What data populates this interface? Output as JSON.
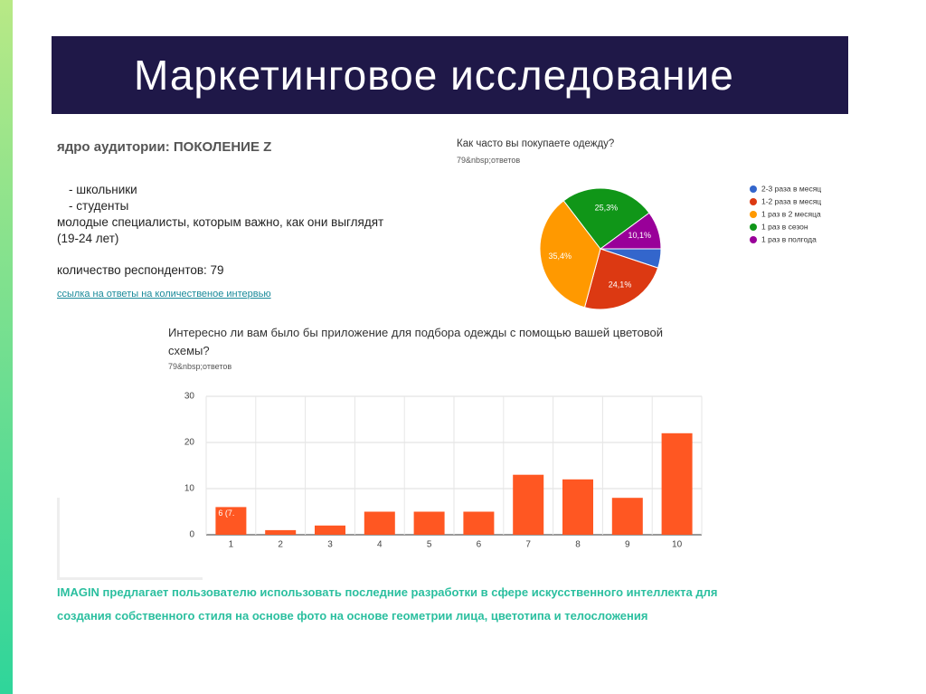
{
  "slide": {
    "title": "Маркетинговое исследование",
    "heading": "ядро аудитории: ПОКОЛЕНИЕ Z",
    "lines": [
      "- школьники",
      "- студенты",
      "молодые специалисты, которым важно, как они выглядят",
      "(19-24 лет)"
    ],
    "respondents": "количество респондентов: 79",
    "link": "ссылка на ответы на количественое интервью",
    "footer": "IMAGIN предлагает пользователю использовать последние разработки в сфере искусственного интеллекта для создания собственного стиля на основе фото на основе геометрии лица, цветотипа  и телосложения"
  },
  "chart_data": [
    {
      "type": "pie",
      "title": "Как часто вы покупаете одежду?",
      "subtitle": "79&nbsp;ответов",
      "categories": [
        "2-3 раза в месяц",
        "1-2 раза в месяц",
        "1 раз в 2 месяца",
        "1 раз в сезон",
        "1 раз в полгода"
      ],
      "colors": [
        "#3366cc",
        "#dc3912",
        "#ff9900",
        "#109618",
        "#990099"
      ],
      "values": [
        5.1,
        24.1,
        35.4,
        25.3,
        10.1
      ],
      "value_labels": [
        null,
        "24,1%",
        "35,4%",
        "25,3%",
        "10,1%"
      ],
      "legend": "right"
    },
    {
      "type": "bar",
      "title": "Интересно ли вам было бы приложение для подбора одежды с помощью вашей цветовой схемы?",
      "subtitle": "79&nbsp;ответов",
      "categories": [
        "1",
        "2",
        "3",
        "4",
        "5",
        "6",
        "7",
        "8",
        "9",
        "10"
      ],
      "values": [
        6,
        1,
        2,
        5,
        5,
        5,
        13,
        12,
        8,
        22
      ],
      "annotation": "6 (7.",
      "color": "#ff5722",
      "ylim": [
        0,
        30
      ],
      "yticks": [
        0,
        10,
        20,
        30
      ],
      "grid": true
    }
  ]
}
